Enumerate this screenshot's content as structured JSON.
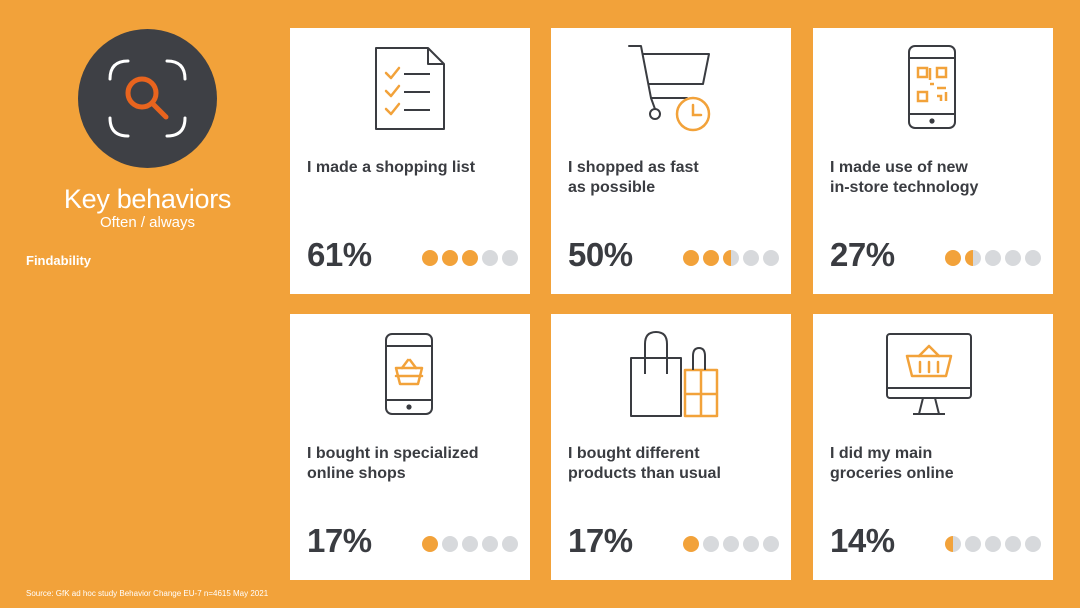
{
  "header": {
    "title": "Key behaviors",
    "subtitle": "Often / always",
    "section": "Findability",
    "badge_icon": "magnifier-scan-icon"
  },
  "colors": {
    "accent": "#F2A23A",
    "dark": "#3e4045",
    "icon_orange": "#E8641E",
    "dot_empty": "#d7d9dc"
  },
  "cards": [
    {
      "label_line1": "I made a shopping list",
      "label_line2": "",
      "percent": "61%",
      "value": 0.61,
      "icon": "checklist-icon"
    },
    {
      "label_line1": "I shopped as fast",
      "label_line2": "as possible",
      "percent": "50%",
      "value": 0.5,
      "icon": "cart-clock-icon"
    },
    {
      "label_line1": "I made use of new",
      "label_line2": "in-store technology",
      "percent": "27%",
      "value": 0.27,
      "icon": "phone-qr-icon"
    },
    {
      "label_line1": "I bought in specialized",
      "label_line2": "online shops",
      "percent": "17%",
      "value": 0.17,
      "icon": "phone-basket-icon"
    },
    {
      "label_line1": "I bought different",
      "label_line2": "products than usual",
      "percent": "17%",
      "value": 0.17,
      "icon": "shopping-bags-icon"
    },
    {
      "label_line1": "I did my main",
      "label_line2": "groceries online",
      "percent": "14%",
      "value": 0.14,
      "icon": "monitor-basket-icon"
    }
  ],
  "footer": {
    "source": "Source: GfK ad hoc study Behavior Change EU-7 n=4615 May 2021"
  }
}
